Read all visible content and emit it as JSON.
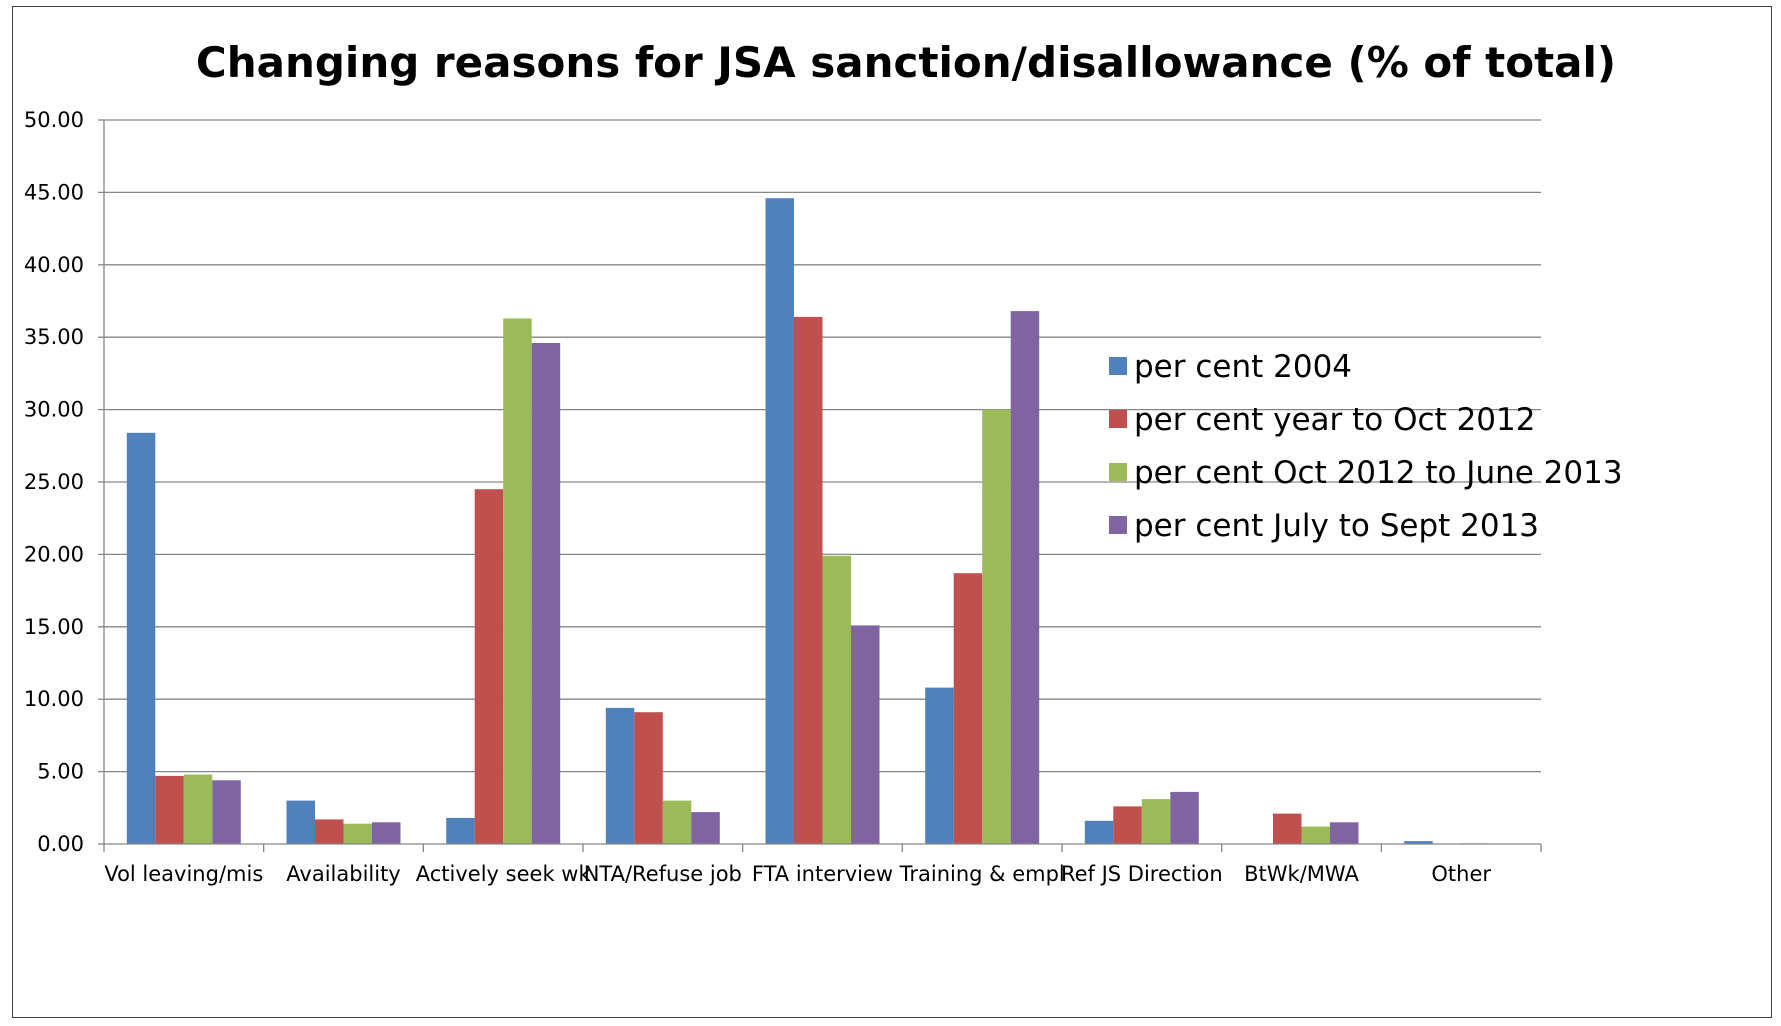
{
  "chart_data": {
    "type": "bar",
    "title": "Changing reasons for JSA sanction/disallowance (% of total)",
    "xlabel": "",
    "ylabel": "",
    "ylim": [
      0,
      50
    ],
    "yticks": [
      "0.00",
      "5.00",
      "10.00",
      "15.00",
      "20.00",
      "25.00",
      "30.00",
      "35.00",
      "40.00",
      "45.00",
      "50.00"
    ],
    "grid": true,
    "legend_position": "right",
    "categories": [
      "Vol leaving/mis",
      "Availability",
      "Actively seek wk",
      "NTA/Refuse job",
      "FTA interview",
      "Training & empl",
      "Ref JS Direction",
      "BtWk/MWA",
      "Other"
    ],
    "series": [
      {
        "name": "per cent 2004",
        "color": "#4f81bd",
        "values": [
          28.4,
          3.0,
          1.8,
          9.4,
          44.6,
          10.8,
          1.6,
          0.0,
          0.2
        ]
      },
      {
        "name": "per cent year to Oct 2012",
        "color": "#c0504d",
        "values": [
          4.7,
          1.7,
          24.5,
          9.1,
          36.4,
          18.7,
          2.6,
          2.1,
          0.0
        ]
      },
      {
        "name": "per cent Oct 2012 to June 2013",
        "color": "#9bbb59",
        "values": [
          4.8,
          1.4,
          36.3,
          3.0,
          19.9,
          30.0,
          3.1,
          1.2,
          0.05
        ]
      },
      {
        "name": "per cent July to Sept 2013",
        "color": "#8064a2",
        "values": [
          4.4,
          1.5,
          34.6,
          2.2,
          15.1,
          36.8,
          3.6,
          1.5,
          0.0
        ]
      }
    ]
  }
}
